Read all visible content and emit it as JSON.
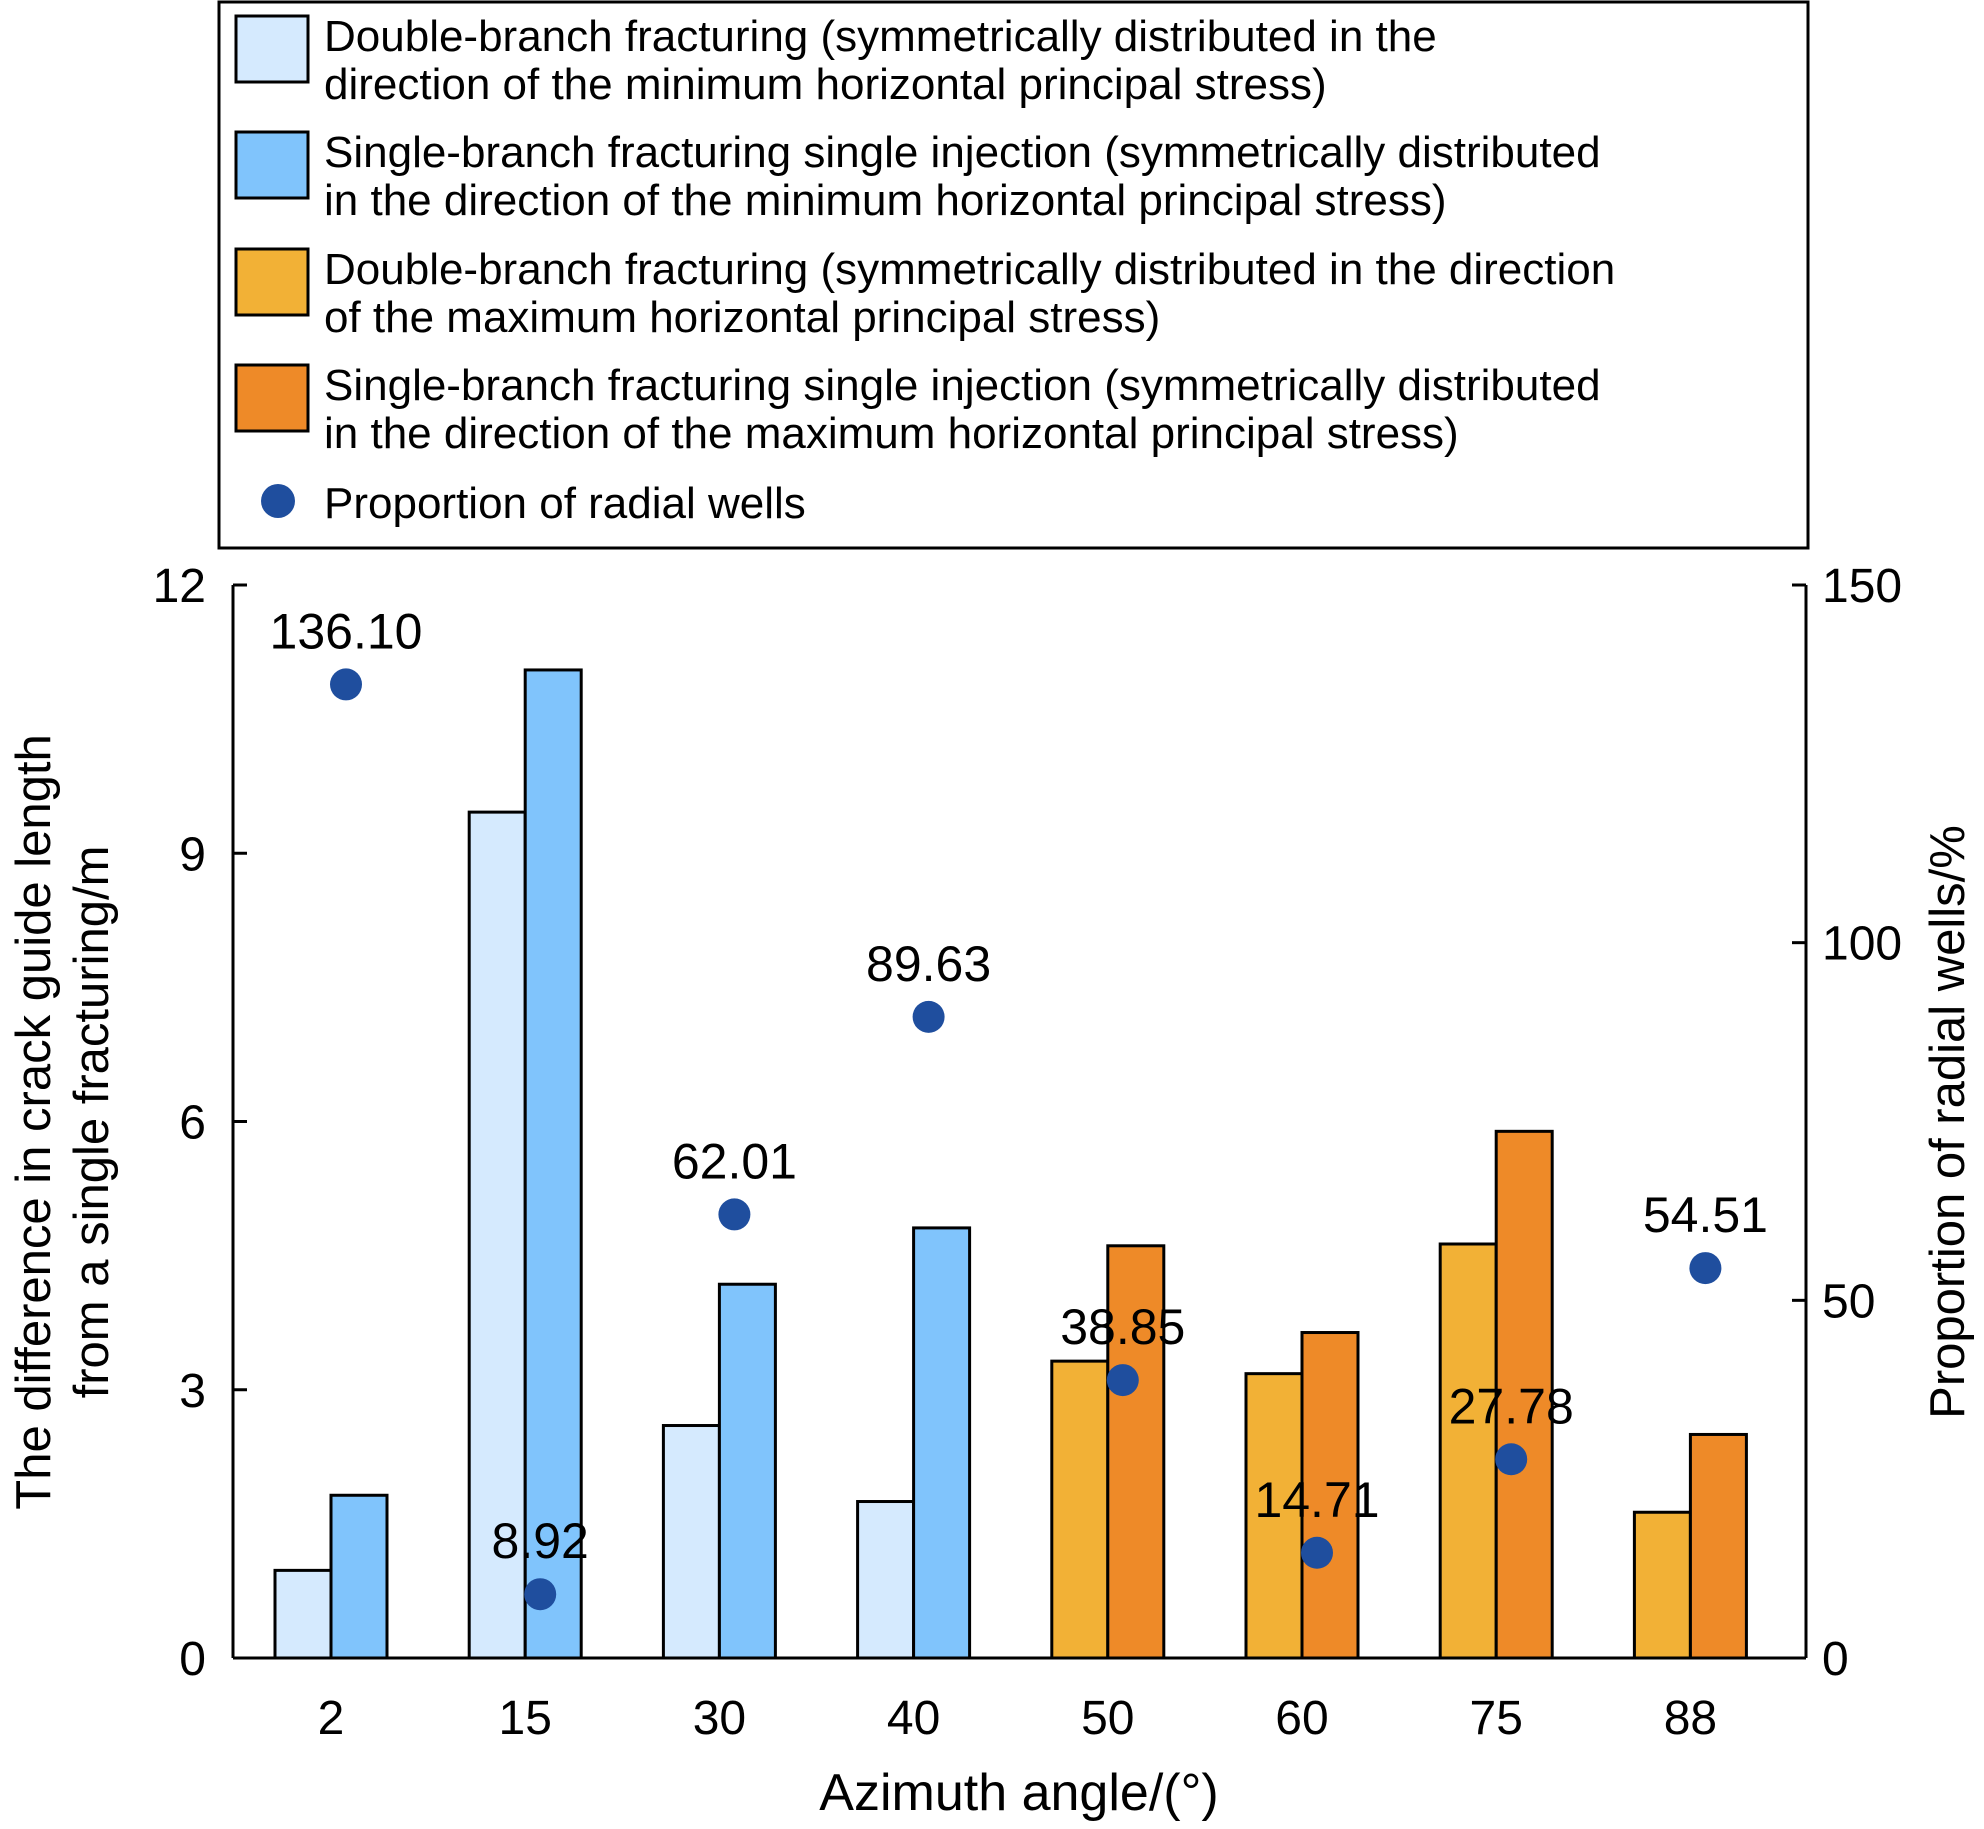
{
  "chart_data": {
    "type": "bar",
    "xlabel": "Azimuth angle/(°)",
    "ylabel_lines": [
      "The difference in crack guide length",
      "from a single fracturing/m"
    ],
    "y2label": "Proportion of radial wells/%",
    "ylim": [
      0,
      12
    ],
    "y2lim": [
      0,
      150
    ],
    "yticks": [
      "0",
      "3",
      "6",
      "9",
      "12"
    ],
    "y2ticks": [
      "0",
      "50",
      "100",
      "150"
    ],
    "categories": [
      "2",
      "15",
      "30",
      "40",
      "50",
      "60",
      "75",
      "88"
    ],
    "colors": {
      "double_min": "#d5eafe",
      "single_min": "#80c4fc",
      "double_max": "#f2b136",
      "single_max": "#ee8a28",
      "dot": "#1f4e9e"
    },
    "bars": {
      "double": [
        0.98,
        9.46,
        2.6,
        1.75,
        3.32,
        3.18,
        4.63,
        1.63
      ],
      "single": [
        1.82,
        11.05,
        4.18,
        4.81,
        4.61,
        3.64,
        5.89,
        2.5
      ],
      "group": [
        "min",
        "min",
        "min",
        "min",
        "max",
        "max",
        "max",
        "max"
      ]
    },
    "proportion": {
      "values": [
        136.1,
        8.92,
        62.01,
        89.63,
        38.85,
        14.71,
        27.78,
        54.51
      ],
      "labels": [
        "136.10",
        "8.92",
        "62.01",
        "89.63",
        "38.85",
        "14.71",
        "27.78",
        "54.51"
      ]
    },
    "legend": {
      "placement": "top",
      "entries": [
        {
          "key": "double_min",
          "shape": "rect",
          "lines": [
            "Double-branch fracturing (symmetrically distributed in the",
            "direction of the minimum horizontal principal stress)"
          ]
        },
        {
          "key": "single_min",
          "shape": "rect",
          "lines": [
            "Single-branch fracturing single injection (symmetrically distributed",
            "in the direction of the minimum horizontal principal stress)"
          ]
        },
        {
          "key": "double_max",
          "shape": "rect",
          "lines": [
            "Double-branch fracturing (symmetrically distributed in the direction",
            "of the maximum horizontal principal stress)"
          ]
        },
        {
          "key": "single_max",
          "shape": "rect",
          "lines": [
            "Single-branch fracturing single injection (symmetrically distributed",
            "in the direction of the maximum horizontal principal stress)"
          ]
        },
        {
          "key": "dot",
          "shape": "circle",
          "lines": [
            "Proportion of radial wells"
          ]
        }
      ]
    }
  }
}
